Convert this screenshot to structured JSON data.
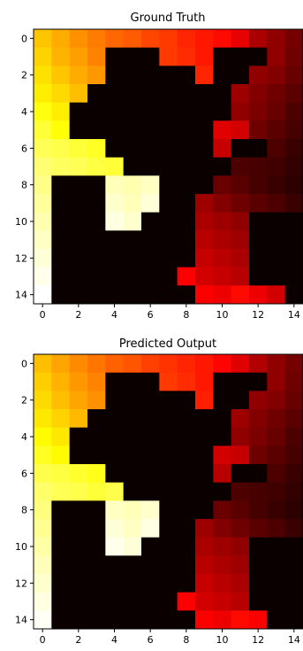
{
  "chart_data": [
    {
      "type": "heatmap",
      "title": "Ground Truth",
      "colormap": "hot",
      "vmin": 0,
      "vmax": 1,
      "xticks": [
        0,
        2,
        4,
        6,
        8,
        10,
        12,
        14
      ],
      "yticks": [
        0,
        2,
        4,
        6,
        8,
        10,
        12,
        14
      ],
      "grid": false,
      "z": [
        [
          0.66,
          0.62,
          0.58,
          0.55,
          0.52,
          0.5,
          0.47,
          0.45,
          0.42,
          0.4,
          0.38,
          0.33,
          0.24,
          0.2,
          0.16
        ],
        [
          0.68,
          0.63,
          0.6,
          0.56,
          0.0,
          0.0,
          0.0,
          0.45,
          0.43,
          0.4,
          0.0,
          0.0,
          0.0,
          0.2,
          0.15
        ],
        [
          0.7,
          0.66,
          0.62,
          0.59,
          0.0,
          0.0,
          0.0,
          0.0,
          0.0,
          0.42,
          0.0,
          0.0,
          0.2,
          0.18,
          0.14
        ],
        [
          0.72,
          0.69,
          0.65,
          0.0,
          0.0,
          0.0,
          0.0,
          0.0,
          0.0,
          0.0,
          0.0,
          0.22,
          0.18,
          0.15,
          0.12
        ],
        [
          0.76,
          0.72,
          0.0,
          0.0,
          0.0,
          0.0,
          0.0,
          0.0,
          0.0,
          0.0,
          0.0,
          0.2,
          0.17,
          0.14,
          0.1
        ],
        [
          0.8,
          0.75,
          0.0,
          0.0,
          0.0,
          0.0,
          0.0,
          0.0,
          0.0,
          0.0,
          0.32,
          0.3,
          0.15,
          0.12,
          0.09
        ],
        [
          0.83,
          0.82,
          0.8,
          0.78,
          0.0,
          0.0,
          0.0,
          0.0,
          0.0,
          0.0,
          0.28,
          0.0,
          0.0,
          0.1,
          0.07
        ],
        [
          0.86,
          0.84,
          0.83,
          0.81,
          0.8,
          0.0,
          0.0,
          0.0,
          0.0,
          0.0,
          0.0,
          0.1,
          0.09,
          0.08,
          0.06
        ],
        [
          0.88,
          0.0,
          0.0,
          0.0,
          0.93,
          0.92,
          0.94,
          0.0,
          0.0,
          0.0,
          0.14,
          0.12,
          0.09,
          0.07,
          0.05
        ],
        [
          0.9,
          0.0,
          0.0,
          0.0,
          0.95,
          0.93,
          0.96,
          0.0,
          0.0,
          0.22,
          0.18,
          0.15,
          0.12,
          0.1,
          0.07
        ],
        [
          0.92,
          0.0,
          0.0,
          0.0,
          0.97,
          0.95,
          0.0,
          0.0,
          0.0,
          0.24,
          0.22,
          0.2,
          0.0,
          0.0,
          0.0
        ],
        [
          0.94,
          0.0,
          0.0,
          0.0,
          0.0,
          0.0,
          0.0,
          0.0,
          0.0,
          0.26,
          0.24,
          0.22,
          0.0,
          0.0,
          0.0
        ],
        [
          0.96,
          0.0,
          0.0,
          0.0,
          0.0,
          0.0,
          0.0,
          0.0,
          0.0,
          0.28,
          0.26,
          0.24,
          0.0,
          0.0,
          0.0
        ],
        [
          0.98,
          0.0,
          0.0,
          0.0,
          0.0,
          0.0,
          0.0,
          0.0,
          0.36,
          0.3,
          0.28,
          0.26,
          0.0,
          0.0,
          0.0
        ],
        [
          1.0,
          0.0,
          0.0,
          0.0,
          0.0,
          0.0,
          0.0,
          0.0,
          0.0,
          0.36,
          0.34,
          0.38,
          0.34,
          0.3,
          0.0
        ]
      ]
    },
    {
      "type": "heatmap",
      "title": "Predicted Output",
      "colormap": "hot",
      "vmin": 0,
      "vmax": 1,
      "xticks": [
        0,
        2,
        4,
        6,
        8,
        10,
        12,
        14
      ],
      "yticks": [
        0,
        2,
        4,
        6,
        8,
        10,
        12,
        14
      ],
      "grid": false,
      "z": [
        [
          0.65,
          0.61,
          0.57,
          0.54,
          0.51,
          0.49,
          0.46,
          0.44,
          0.42,
          0.4,
          0.37,
          0.32,
          0.25,
          0.2,
          0.16
        ],
        [
          0.67,
          0.63,
          0.59,
          0.56,
          0.0,
          0.0,
          0.0,
          0.45,
          0.43,
          0.4,
          0.0,
          0.0,
          0.0,
          0.2,
          0.15
        ],
        [
          0.69,
          0.65,
          0.61,
          0.58,
          0.0,
          0.0,
          0.0,
          0.0,
          0.0,
          0.41,
          0.0,
          0.0,
          0.2,
          0.18,
          0.14
        ],
        [
          0.71,
          0.68,
          0.64,
          0.0,
          0.0,
          0.0,
          0.0,
          0.0,
          0.0,
          0.0,
          0.0,
          0.22,
          0.18,
          0.15,
          0.12
        ],
        [
          0.74,
          0.71,
          0.0,
          0.0,
          0.0,
          0.0,
          0.0,
          0.0,
          0.0,
          0.0,
          0.0,
          0.2,
          0.17,
          0.14,
          0.1
        ],
        [
          0.78,
          0.74,
          0.0,
          0.0,
          0.0,
          0.0,
          0.0,
          0.0,
          0.0,
          0.0,
          0.3,
          0.28,
          0.15,
          0.12,
          0.09
        ],
        [
          0.82,
          0.81,
          0.79,
          0.77,
          0.0,
          0.0,
          0.0,
          0.0,
          0.0,
          0.0,
          0.26,
          0.0,
          0.0,
          0.1,
          0.07
        ],
        [
          0.85,
          0.83,
          0.82,
          0.8,
          0.82,
          0.0,
          0.0,
          0.0,
          0.0,
          0.0,
          0.0,
          0.1,
          0.09,
          0.08,
          0.06
        ],
        [
          0.87,
          0.0,
          0.0,
          0.0,
          0.94,
          0.93,
          0.95,
          0.0,
          0.0,
          0.0,
          0.14,
          0.12,
          0.09,
          0.07,
          0.05
        ],
        [
          0.89,
          0.0,
          0.0,
          0.0,
          0.96,
          0.94,
          0.97,
          0.0,
          0.0,
          0.22,
          0.18,
          0.15,
          0.12,
          0.1,
          0.07
        ],
        [
          0.91,
          0.0,
          0.0,
          0.0,
          0.98,
          0.96,
          0.0,
          0.0,
          0.0,
          0.24,
          0.22,
          0.2,
          0.0,
          0.0,
          0.0
        ],
        [
          0.93,
          0.0,
          0.0,
          0.0,
          0.0,
          0.0,
          0.0,
          0.0,
          0.0,
          0.26,
          0.24,
          0.22,
          0.0,
          0.0,
          0.0
        ],
        [
          0.95,
          0.0,
          0.0,
          0.0,
          0.0,
          0.0,
          0.0,
          0.0,
          0.0,
          0.28,
          0.26,
          0.24,
          0.0,
          0.0,
          0.0
        ],
        [
          0.97,
          0.0,
          0.0,
          0.0,
          0.0,
          0.0,
          0.0,
          0.0,
          0.36,
          0.3,
          0.28,
          0.26,
          0.0,
          0.0,
          0.0
        ],
        [
          0.99,
          0.0,
          0.0,
          0.0,
          0.0,
          0.0,
          0.0,
          0.0,
          0.0,
          0.36,
          0.34,
          0.38,
          0.36,
          0.0,
          0.0
        ]
      ]
    }
  ]
}
